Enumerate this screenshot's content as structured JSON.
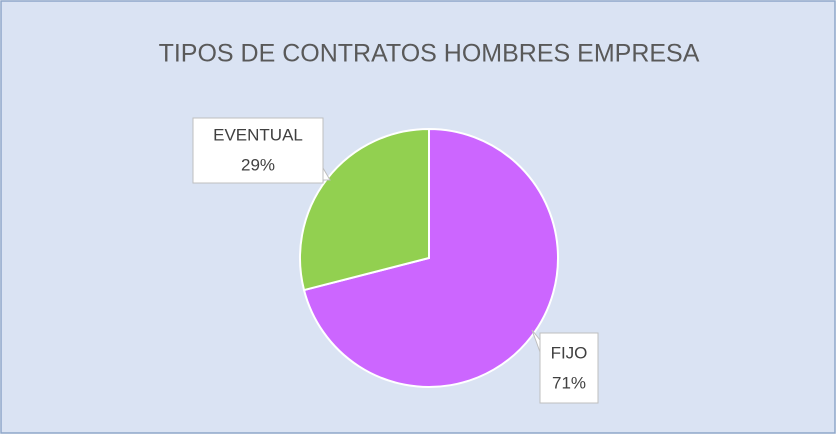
{
  "chart_data": {
    "type": "pie",
    "title": "TIPOS DE CONTRATOS HOMBRES EMPRESA",
    "categories": [
      "FIJO",
      "EVENTUAL"
    ],
    "values": [
      71,
      29
    ],
    "value_labels": [
      "71%",
      "29%"
    ],
    "colors": [
      "#cc66ff",
      "#92d050"
    ]
  }
}
